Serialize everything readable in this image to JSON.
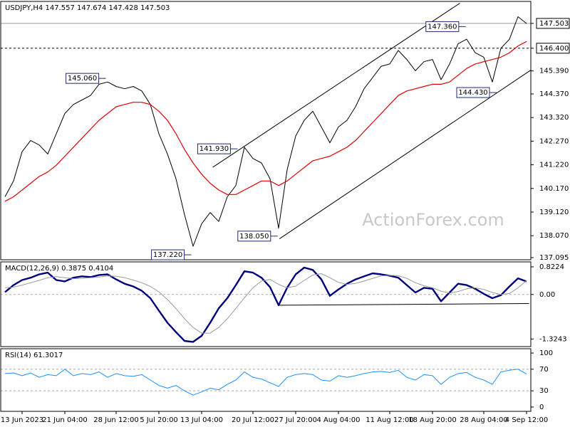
{
  "chart_data": [
    {
      "type": "line",
      "title": "USDJPY,H4  147.557 147.674 147.428 147.503",
      "watermark": "ActionForex.com",
      "ylim": [
        137.0,
        148.48
      ],
      "yticks": [
        137.095,
        {
          "value": 138.07,
          "label": "138.070"
        },
        {
          "value": 139.12,
          "label": "139.120"
        },
        {
          "value": 140.17,
          "label": "140.170"
        },
        {
          "value": 141.22,
          "label": "141.220"
        },
        {
          "value": 142.27,
          "label": "142.270"
        },
        {
          "value": 143.32,
          "label": "143.320"
        },
        {
          "value": 144.37,
          "label": "144.370"
        },
        {
          "value": 145.39,
          "label": "145.390"
        },
        {
          "value": 146.4,
          "label": "146.400",
          "line": "dashed"
        },
        {
          "value": 147.503,
          "label": "147.503",
          "line": "solid"
        }
      ],
      "series": [
        {
          "color": "#000000",
          "width": 1,
          "values": [
            139.8,
            140.5,
            141.8,
            142.3,
            142.1,
            141.7,
            142.6,
            143.5,
            143.9,
            144.1,
            144.3,
            144.8,
            144.9,
            144.7,
            144.6,
            144.7,
            144.5,
            143.9,
            142.6,
            141.7,
            140.6,
            139.0,
            137.6,
            138.6,
            139.1,
            138.7,
            139.8,
            140.3,
            142.0,
            141.5,
            141.3,
            140.6,
            138.4,
            141.0,
            142.5,
            143.2,
            143.6,
            142.9,
            142.2,
            142.9,
            143.2,
            143.8,
            144.6,
            145.1,
            145.6,
            145.7,
            146.3,
            145.9,
            145.4,
            145.8,
            145.9,
            145.0,
            145.7,
            146.6,
            146.8,
            146.2,
            146.0,
            144.9,
            146.4,
            146.8,
            147.8,
            147.5
          ]
        },
        {
          "color": "#e00000",
          "width": 1.2,
          "values": [
            139.6,
            139.8,
            140.1,
            140.4,
            140.7,
            140.9,
            141.2,
            141.6,
            142.0,
            142.4,
            142.8,
            143.2,
            143.5,
            143.8,
            143.9,
            144.0,
            144.0,
            143.9,
            143.6,
            143.2,
            142.6,
            141.9,
            141.3,
            140.8,
            140.4,
            140.1,
            139.9,
            139.9,
            140.1,
            140.3,
            140.5,
            140.5,
            140.3,
            140.5,
            140.8,
            141.1,
            141.4,
            141.5,
            141.6,
            141.8,
            142.0,
            142.3,
            142.7,
            143.1,
            143.5,
            143.9,
            144.3,
            144.5,
            144.6,
            144.7,
            144.8,
            144.8,
            144.9,
            145.2,
            145.5,
            145.7,
            145.8,
            145.9,
            146.0,
            146.2,
            146.5,
            146.7
          ]
        }
      ],
      "lines": [
        {
          "x": [
            24.3,
            53.2
          ],
          "y": [
            141.11,
            148.4
          ]
        },
        {
          "x": [
            32.1,
            62.1
          ],
          "y": [
            137.93,
            145.58
          ]
        }
      ],
      "annotations": [
        {
          "label": "145.060",
          "value": 145.06,
          "x": 11.8
        },
        {
          "label": "141.930",
          "value": 141.93,
          "x": 27.2
        },
        {
          "label": "137.220",
          "value": 137.22,
          "x": 21.8
        },
        {
          "label": "138.050",
          "value": 138.05,
          "x": 31.9
        },
        {
          "label": "147.360",
          "value": 147.36,
          "x": 53.9
        },
        {
          "label": "144.430",
          "value": 144.43,
          "x": 57.5
        }
      ]
    },
    {
      "type": "line",
      "title": "MACD(12,26,9) 0.3875 0.4104",
      "ylim": [
        -1.55,
        0.97
      ],
      "yticks": [
        0.8224,
        {
          "value": 0,
          "label": "0.00",
          "line": "dashed"
        },
        -1.3243
      ],
      "series": [
        {
          "color": "#000080",
          "width": 2.4,
          "values": [
            0.07,
            0.28,
            0.43,
            0.5,
            0.6,
            0.65,
            0.43,
            0.39,
            0.5,
            0.54,
            0.52,
            0.58,
            0.6,
            0.45,
            0.32,
            0.24,
            0.11,
            -0.11,
            -0.48,
            -0.84,
            -1.12,
            -1.38,
            -1.41,
            -1.23,
            -0.84,
            -0.41,
            -0.11,
            0.28,
            0.69,
            0.65,
            0.5,
            0.22,
            -0.32,
            0.2,
            0.6,
            0.8,
            0.73,
            0.45,
            -0.04,
            0.15,
            0.32,
            0.45,
            0.54,
            0.63,
            0.6,
            0.56,
            0.5,
            0.28,
            0.06,
            0.2,
            0.17,
            -0.2,
            0.06,
            0.32,
            0.28,
            0.17,
            0.02,
            -0.11,
            -0.02,
            0.24,
            0.48,
            0.3875
          ]
        },
        {
          "color": "#9a9a9a",
          "width": 1,
          "values": [
            0.2,
            0.22,
            0.28,
            0.35,
            0.42,
            0.5,
            0.53,
            0.5,
            0.47,
            0.48,
            0.5,
            0.52,
            0.55,
            0.54,
            0.5,
            0.43,
            0.35,
            0.24,
            0.08,
            -0.15,
            -0.42,
            -0.72,
            -0.98,
            -1.15,
            -1.15,
            -0.98,
            -0.72,
            -0.42,
            -0.1,
            0.2,
            0.4,
            0.45,
            0.3,
            0.2,
            0.25,
            0.42,
            0.58,
            0.62,
            0.5,
            0.36,
            0.3,
            0.33,
            0.4,
            0.48,
            0.55,
            0.57,
            0.56,
            0.48,
            0.35,
            0.26,
            0.2,
            0.1,
            0.04,
            0.09,
            0.17,
            0.2,
            0.15,
            0.06,
            0.0,
            0.03,
            0.2,
            0.4104
          ]
        }
      ],
      "lines": [
        {
          "x": [
            32.1,
            61.3
          ],
          "y": [
            -0.32,
            -0.27
          ]
        }
      ]
    },
    {
      "type": "line",
      "title": "RSI(14) 61.3017",
      "ylim": [
        -8,
        108
      ],
      "yticks": [
        100,
        {
          "value": 70,
          "label": "70",
          "line": "dashed"
        },
        {
          "value": 30,
          "label": "30",
          "line": "dashed"
        },
        0
      ],
      "categories": [
        null,
        null,
        "13 Jun 2023",
        null,
        null,
        null,
        null,
        "21 Jun 04:00",
        null,
        null,
        null,
        null,
        null,
        "28 Jun 12:00",
        null,
        null,
        null,
        null,
        "5 Jul 20:00",
        null,
        null,
        null,
        null,
        "13 Jul 04:00",
        null,
        null,
        null,
        null,
        null,
        "20 Jul 12:00",
        null,
        null,
        null,
        null,
        "27 Jul 20:00",
        null,
        null,
        null,
        null,
        "4 Aug 04:00",
        null,
        null,
        null,
        null,
        null,
        "11 Aug 12:00",
        null,
        null,
        null,
        null,
        "18 Aug 20:00",
        null,
        null,
        null,
        null,
        null,
        "28 Aug 04:00",
        null,
        null,
        null,
        null,
        "4 Sep 12:00"
      ],
      "series": [
        {
          "color": "#1e90ff",
          "width": 1,
          "values": [
            62,
            63,
            58,
            63,
            55,
            60,
            58,
            70,
            58,
            62,
            60,
            65,
            55,
            62,
            58,
            57,
            60,
            50,
            40,
            35,
            40,
            30,
            22,
            28,
            35,
            32,
            42,
            50,
            65,
            55,
            52,
            45,
            38,
            55,
            60,
            62,
            60,
            50,
            48,
            58,
            55,
            58,
            62,
            65,
            66,
            64,
            68,
            55,
            50,
            60,
            58,
            42,
            55,
            62,
            64,
            55,
            50,
            42,
            65,
            68,
            70,
            61.3017
          ]
        }
      ]
    }
  ]
}
